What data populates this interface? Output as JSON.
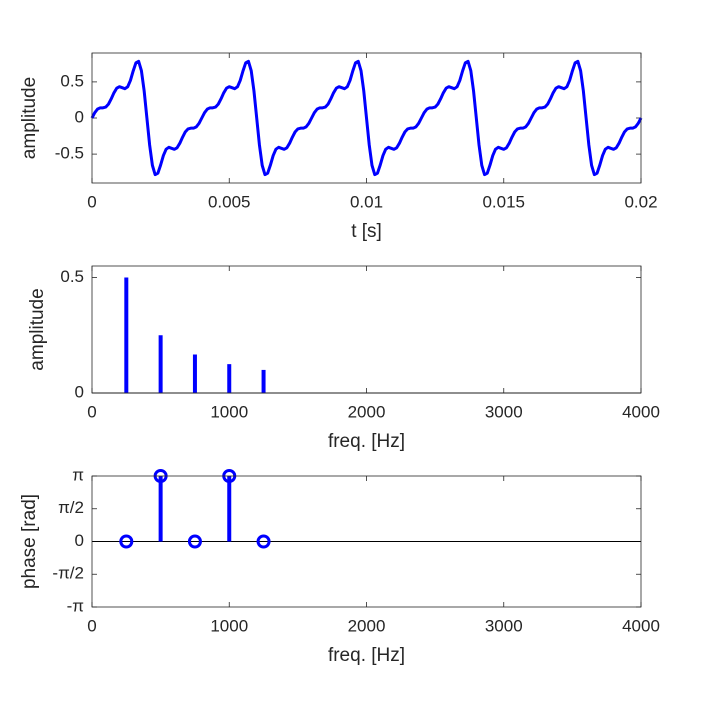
{
  "chart_data": [
    {
      "type": "line",
      "xlabel": "t [s]",
      "ylabel": "amplitude",
      "color": "#0000ff",
      "xlim": [
        0,
        0.02
      ],
      "ylim": [
        -0.9,
        0.9
      ],
      "xticks": [
        0,
        0.005,
        0.01,
        0.015,
        0.02
      ],
      "yticks": [
        -0.5,
        0,
        0.5
      ],
      "x": [
        0,
        0.0001,
        0.0002,
        0.0003,
        0.0004,
        0.0005,
        0.0006,
        0.0007,
        0.0008,
        0.0009,
        0.001,
        0.0011,
        0.0012,
        0.0013,
        0.0014,
        0.0015,
        0.0016,
        0.0017,
        0.0018,
        0.0019,
        0.002,
        0.0021,
        0.0022,
        0.0023,
        0.0024,
        0.0025,
        0.0026,
        0.0027,
        0.0028,
        0.0029,
        0.003,
        0.0031,
        0.0032,
        0.0033,
        0.0034,
        0.0035,
        0.0036,
        0.0037,
        0.0038,
        0.0039,
        0.004,
        0.0041,
        0.0042,
        0.0043,
        0.0044,
        0.0045,
        0.0046,
        0.0047,
        0.0048,
        0.0049,
        0.005,
        0.0051,
        0.0052,
        0.0053,
        0.0054,
        0.0055,
        0.0056,
        0.0057,
        0.0058,
        0.0059,
        0.006,
        0.0061,
        0.0062,
        0.0063,
        0.0064,
        0.0065,
        0.0066,
        0.0067,
        0.0068,
        0.0069,
        0.007,
        0.0071,
        0.0072,
        0.0073,
        0.0074,
        0.0075,
        0.0076,
        0.0077,
        0.0078,
        0.0079,
        0.008,
        0.0081,
        0.0082,
        0.0083,
        0.0084,
        0.0085,
        0.0086,
        0.0087,
        0.0088,
        0.0089,
        0.009,
        0.0091,
        0.0092,
        0.0093,
        0.0094,
        0.0095,
        0.0096,
        0.0097,
        0.0098,
        0.0099,
        0.01,
        0.0101,
        0.0102,
        0.0103,
        0.0104,
        0.0105,
        0.0106,
        0.0107,
        0.0108,
        0.0109,
        0.011,
        0.0111,
        0.0112,
        0.0113,
        0.0114,
        0.0115,
        0.0116,
        0.0117,
        0.0118,
        0.0119,
        0.012,
        0.0121,
        0.0122,
        0.0123,
        0.0124,
        0.0125,
        0.0126,
        0.0127,
        0.0128,
        0.0129,
        0.013,
        0.0131,
        0.0132,
        0.0133,
        0.0134,
        0.0135,
        0.0136,
        0.0137,
        0.0138,
        0.0139,
        0.014,
        0.0141,
        0.0142,
        0.0143,
        0.0144,
        0.0145,
        0.0146,
        0.0147,
        0.0148,
        0.0149,
        0.015,
        0.0151,
        0.0152,
        0.0153,
        0.0154,
        0.0155,
        0.0156,
        0.0157,
        0.0158,
        0.0159,
        0.016,
        0.0161,
        0.0162,
        0.0163,
        0.0164,
        0.0165,
        0.0166,
        0.0167,
        0.0168,
        0.0169,
        0.017,
        0.0171,
        0.0172,
        0.0173,
        0.0174,
        0.0175,
        0.0176,
        0.0177,
        0.0178,
        0.0179,
        0.018,
        0.0181,
        0.0182,
        0.0183,
        0.0184,
        0.0185,
        0.0186,
        0.0187,
        0.0188,
        0.0189,
        0.019,
        0.0191,
        0.0192,
        0.0193,
        0.0194,
        0.0195,
        0.0196,
        0.0197,
        0.0198,
        0.0199,
        0.02
      ],
      "values": [
        0,
        0.074,
        0.123,
        0.141,
        0.141,
        0.151,
        0.192,
        0.265,
        0.349,
        0.412,
        0.433,
        0.42,
        0.406,
        0.432,
        0.52,
        0.651,
        0.764,
        0.784,
        0.655,
        0.375,
        0,
        -0.375,
        -0.655,
        -0.784,
        -0.764,
        -0.651,
        -0.52,
        -0.432,
        -0.406,
        -0.42,
        -0.433,
        -0.412,
        -0.349,
        -0.265,
        -0.192,
        -0.151,
        -0.141,
        -0.141,
        -0.123,
        -0.074,
        0,
        0.074,
        0.123,
        0.141,
        0.141,
        0.151,
        0.192,
        0.265,
        0.349,
        0.412,
        0.433,
        0.42,
        0.406,
        0.432,
        0.52,
        0.651,
        0.764,
        0.784,
        0.655,
        0.375,
        0,
        -0.375,
        -0.655,
        -0.784,
        -0.764,
        -0.651,
        -0.52,
        -0.432,
        -0.406,
        -0.42,
        -0.433,
        -0.412,
        -0.349,
        -0.265,
        -0.192,
        -0.151,
        -0.141,
        -0.141,
        -0.123,
        -0.074,
        0,
        0.074,
        0.123,
        0.141,
        0.141,
        0.151,
        0.192,
        0.265,
        0.349,
        0.412,
        0.433,
        0.42,
        0.406,
        0.432,
        0.52,
        0.651,
        0.764,
        0.784,
        0.655,
        0.375,
        0,
        -0.375,
        -0.655,
        -0.784,
        -0.764,
        -0.651,
        -0.52,
        -0.432,
        -0.406,
        -0.42,
        -0.433,
        -0.412,
        -0.349,
        -0.265,
        -0.192,
        -0.151,
        -0.141,
        -0.141,
        -0.123,
        -0.074,
        0,
        0.074,
        0.123,
        0.141,
        0.141,
        0.151,
        0.192,
        0.265,
        0.349,
        0.412,
        0.433,
        0.42,
        0.406,
        0.432,
        0.52,
        0.651,
        0.764,
        0.784,
        0.655,
        0.375,
        0,
        -0.375,
        -0.655,
        -0.784,
        -0.764,
        -0.651,
        -0.52,
        -0.432,
        -0.406,
        -0.42,
        -0.433,
        -0.412,
        -0.349,
        -0.265,
        -0.192,
        -0.151,
        -0.141,
        -0.141,
        -0.123,
        -0.074,
        0,
        0.074,
        0.123,
        0.141,
        0.141,
        0.151,
        0.192,
        0.265,
        0.349,
        0.412,
        0.433,
        0.42,
        0.406,
        0.432,
        0.52,
        0.651,
        0.764,
        0.784,
        0.655,
        0.375,
        0,
        -0.375,
        -0.655,
        -0.784,
        -0.764,
        -0.651,
        -0.52,
        -0.432,
        -0.406,
        -0.42,
        -0.433,
        -0.412,
        -0.349,
        -0.265,
        -0.192,
        -0.151,
        -0.141,
        -0.141,
        -0.123,
        -0.074,
        0
      ]
    },
    {
      "type": "stem",
      "xlabel": "freq. [Hz]",
      "ylabel": "amplitude",
      "color": "#0000ff",
      "xlim": [
        0,
        4000
      ],
      "ylim": [
        0,
        0.55
      ],
      "xticks": [
        0,
        1000,
        2000,
        3000,
        4000
      ],
      "yticks": [
        0,
        0.5
      ],
      "x": [
        250,
        500,
        750,
        1000,
        1250
      ],
      "values": [
        0.5,
        0.25,
        0.1667,
        0.125,
        0.1
      ]
    },
    {
      "type": "stem",
      "xlabel": "freq. [Hz]",
      "ylabel": "phase [rad]",
      "color": "#0000ff",
      "marker": "o",
      "xlim": [
        0,
        4000
      ],
      "ylim": [
        -3.1416,
        3.1416
      ],
      "xticks": [
        0,
        1000,
        2000,
        3000,
        4000
      ],
      "yticks": [
        {
          "value": -3.1416,
          "label": "-π"
        },
        {
          "value": -1.5708,
          "label": "-π/2"
        },
        0,
        {
          "value": 1.5708,
          "label": "π/2"
        },
        {
          "value": 3.1416,
          "label": "π"
        }
      ],
      "x": [
        250,
        500,
        750,
        1000,
        1250
      ],
      "values": [
        0,
        3.1416,
        0,
        3.1416,
        0
      ]
    }
  ]
}
